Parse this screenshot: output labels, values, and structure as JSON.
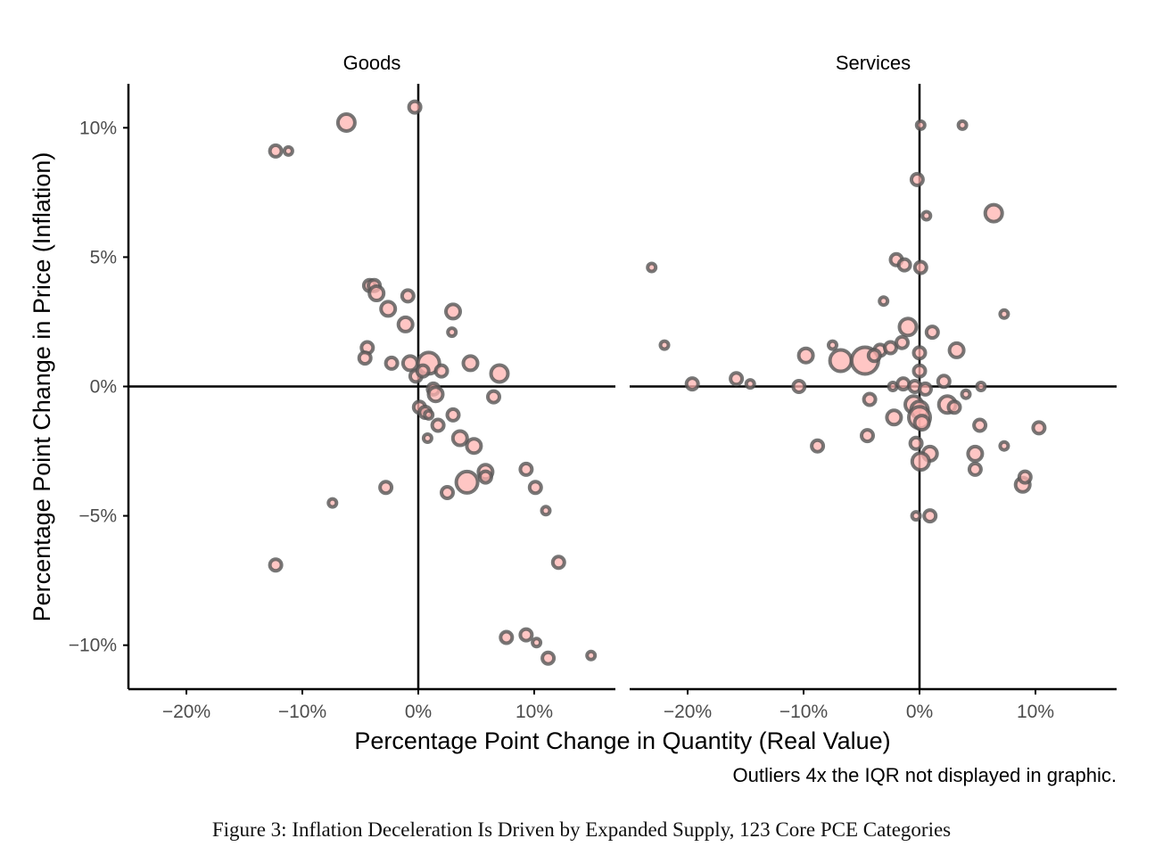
{
  "caption": "Figure 3: Inflation Deceleration Is Driven by Expanded Supply, 123 Core PCE Categories",
  "note": "Outliers 4x the IQR not displayed in graphic.",
  "chart_data": {
    "type": "scatter",
    "xlabel": "Percentage Point Change in Quantity (Real Value)",
    "ylabel": "Percentage Point Change in Price (Inflation)",
    "xlim": [
      -25,
      17
    ],
    "ylim": [
      -11.7,
      11.7
    ],
    "x_ticks": [
      -20,
      -10,
      0,
      10
    ],
    "x_tick_labels": [
      "−20%",
      "−10%",
      "0%",
      "10%"
    ],
    "y_ticks": [
      10,
      5,
      0,
      -5,
      -10
    ],
    "y_tick_labels": [
      "10%",
      "5%",
      "0%",
      "−5%",
      "−10%"
    ],
    "grid": false,
    "colors": {
      "fill": "#ffb3b0",
      "stroke": "#555555",
      "axis": "#000000"
    },
    "panels": [
      {
        "title": "Goods",
        "points": [
          {
            "x": -0.3,
            "y": 10.8,
            "r": 1
          },
          {
            "x": -6.2,
            "y": 10.2,
            "r": 3
          },
          {
            "x": -12.3,
            "y": 9.1,
            "r": 1
          },
          {
            "x": -11.2,
            "y": 9.1,
            "r": 0
          },
          {
            "x": -4.2,
            "y": 3.9,
            "r": 1
          },
          {
            "x": -3.8,
            "y": 3.9,
            "r": 1
          },
          {
            "x": -3.6,
            "y": 3.6,
            "r": 2
          },
          {
            "x": -0.9,
            "y": 3.5,
            "r": 1
          },
          {
            "x": -2.6,
            "y": 3.0,
            "r": 2
          },
          {
            "x": 3.0,
            "y": 2.9,
            "r": 2
          },
          {
            "x": -1.1,
            "y": 2.4,
            "r": 2
          },
          {
            "x": 2.9,
            "y": 2.1,
            "r": 0
          },
          {
            "x": -4.4,
            "y": 1.5,
            "r": 1
          },
          {
            "x": -4.6,
            "y": 1.1,
            "r": 1
          },
          {
            "x": -2.3,
            "y": 0.9,
            "r": 1
          },
          {
            "x": -0.7,
            "y": 0.9,
            "r": 2
          },
          {
            "x": 0.9,
            "y": 0.9,
            "r": 4
          },
          {
            "x": 4.5,
            "y": 0.9,
            "r": 2
          },
          {
            "x": -0.2,
            "y": 0.4,
            "r": 1
          },
          {
            "x": 0.4,
            "y": 0.6,
            "r": 1
          },
          {
            "x": 2.0,
            "y": 0.6,
            "r": 1
          },
          {
            "x": 7.0,
            "y": 0.5,
            "r": 3
          },
          {
            "x": 1.3,
            "y": -0.1,
            "r": 1
          },
          {
            "x": 1.5,
            "y": -0.3,
            "r": 2
          },
          {
            "x": 6.5,
            "y": -0.4,
            "r": 1
          },
          {
            "x": 0.1,
            "y": -0.8,
            "r": 1
          },
          {
            "x": 0.6,
            "y": -1.0,
            "r": 1
          },
          {
            "x": 0.9,
            "y": -1.1,
            "r": 0
          },
          {
            "x": 3.0,
            "y": -1.1,
            "r": 1
          },
          {
            "x": 1.7,
            "y": -1.5,
            "r": 1
          },
          {
            "x": 0.8,
            "y": -2.0,
            "r": 0
          },
          {
            "x": 3.6,
            "y": -2.0,
            "r": 2
          },
          {
            "x": 4.8,
            "y": -2.3,
            "r": 2
          },
          {
            "x": 5.8,
            "y": -3.3,
            "r": 2
          },
          {
            "x": 5.8,
            "y": -3.5,
            "r": 1
          },
          {
            "x": 9.3,
            "y": -3.2,
            "r": 1
          },
          {
            "x": -2.8,
            "y": -3.9,
            "r": 1
          },
          {
            "x": 4.2,
            "y": -3.7,
            "r": 4
          },
          {
            "x": 2.5,
            "y": -4.1,
            "r": 1
          },
          {
            "x": 10.1,
            "y": -3.9,
            "r": 1
          },
          {
            "x": -7.4,
            "y": -4.5,
            "r": 0
          },
          {
            "x": 11.0,
            "y": -4.8,
            "r": 0
          },
          {
            "x": -12.3,
            "y": -6.9,
            "r": 1
          },
          {
            "x": 12.1,
            "y": -6.8,
            "r": 1
          },
          {
            "x": 7.6,
            "y": -9.7,
            "r": 1
          },
          {
            "x": 9.3,
            "y": -9.6,
            "r": 1
          },
          {
            "x": 10.2,
            "y": -9.9,
            "r": 0
          },
          {
            "x": 11.2,
            "y": -10.5,
            "r": 1
          },
          {
            "x": 14.9,
            "y": -10.4,
            "r": 0
          }
        ]
      },
      {
        "title": "Services",
        "points": [
          {
            "x": 0.1,
            "y": 10.1,
            "r": 0
          },
          {
            "x": 3.7,
            "y": 10.1,
            "r": 0
          },
          {
            "x": -0.2,
            "y": 8.0,
            "r": 1
          },
          {
            "x": 0.6,
            "y": 6.6,
            "r": 0
          },
          {
            "x": 6.4,
            "y": 6.7,
            "r": 3
          },
          {
            "x": -23.1,
            "y": 4.6,
            "r": 0
          },
          {
            "x": -2.0,
            "y": 4.9,
            "r": 1
          },
          {
            "x": -1.3,
            "y": 4.7,
            "r": 1
          },
          {
            "x": 0.1,
            "y": 4.6,
            "r": 1
          },
          {
            "x": -3.1,
            "y": 3.3,
            "r": 0
          },
          {
            "x": 7.3,
            "y": 2.8,
            "r": 0
          },
          {
            "x": -1.0,
            "y": 2.3,
            "r": 3
          },
          {
            "x": 1.1,
            "y": 2.1,
            "r": 1
          },
          {
            "x": -22.0,
            "y": 1.6,
            "r": 0
          },
          {
            "x": -7.5,
            "y": 1.6,
            "r": 0
          },
          {
            "x": -3.4,
            "y": 1.4,
            "r": 1
          },
          {
            "x": -2.5,
            "y": 1.5,
            "r": 1
          },
          {
            "x": -1.5,
            "y": 1.7,
            "r": 1
          },
          {
            "x": 0.0,
            "y": 1.3,
            "r": 1
          },
          {
            "x": 3.2,
            "y": 1.4,
            "r": 2
          },
          {
            "x": -9.8,
            "y": 1.2,
            "r": 2
          },
          {
            "x": -6.8,
            "y": 1.0,
            "r": 4
          },
          {
            "x": -4.7,
            "y": 1.0,
            "r": 5
          },
          {
            "x": -3.9,
            "y": 1.2,
            "r": 1
          },
          {
            "x": 0.0,
            "y": 0.6,
            "r": 1
          },
          {
            "x": -19.6,
            "y": 0.1,
            "r": 1
          },
          {
            "x": -15.8,
            "y": 0.3,
            "r": 1
          },
          {
            "x": -14.6,
            "y": 0.1,
            "r": 0
          },
          {
            "x": -10.4,
            "y": 0.0,
            "r": 1
          },
          {
            "x": -2.3,
            "y": 0.0,
            "r": 0
          },
          {
            "x": -1.4,
            "y": 0.1,
            "r": 1
          },
          {
            "x": -0.4,
            "y": 0.0,
            "r": 1
          },
          {
            "x": 0.5,
            "y": -0.1,
            "r": 1
          },
          {
            "x": 2.1,
            "y": 0.2,
            "r": 1
          },
          {
            "x": 4.0,
            "y": -0.3,
            "r": 0
          },
          {
            "x": 5.3,
            "y": 0.0,
            "r": 0
          },
          {
            "x": -4.3,
            "y": -0.5,
            "r": 1
          },
          {
            "x": 2.4,
            "y": -0.7,
            "r": 3
          },
          {
            "x": 3.0,
            "y": -0.8,
            "r": 1
          },
          {
            "x": -0.5,
            "y": -0.7,
            "r": 3
          },
          {
            "x": 0.0,
            "y": -0.9,
            "r": 3
          },
          {
            "x": 0.0,
            "y": -1.2,
            "r": 4
          },
          {
            "x": 0.2,
            "y": -1.4,
            "r": 2
          },
          {
            "x": -2.2,
            "y": -1.2,
            "r": 2
          },
          {
            "x": -4.5,
            "y": -1.9,
            "r": 1
          },
          {
            "x": -0.3,
            "y": -2.2,
            "r": 1
          },
          {
            "x": 5.2,
            "y": -1.5,
            "r": 1
          },
          {
            "x": 10.3,
            "y": -1.6,
            "r": 1
          },
          {
            "x": -8.8,
            "y": -2.3,
            "r": 1
          },
          {
            "x": 0.9,
            "y": -2.6,
            "r": 2
          },
          {
            "x": 4.8,
            "y": -2.6,
            "r": 2
          },
          {
            "x": 7.3,
            "y": -2.3,
            "r": 0
          },
          {
            "x": 0.1,
            "y": -2.9,
            "r": 3
          },
          {
            "x": 4.8,
            "y": -3.2,
            "r": 1
          },
          {
            "x": 8.9,
            "y": -3.8,
            "r": 2
          },
          {
            "x": 9.1,
            "y": -3.5,
            "r": 1
          },
          {
            "x": -0.3,
            "y": -5.0,
            "r": 0
          },
          {
            "x": 0.9,
            "y": -5.0,
            "r": 1
          }
        ]
      }
    ]
  }
}
